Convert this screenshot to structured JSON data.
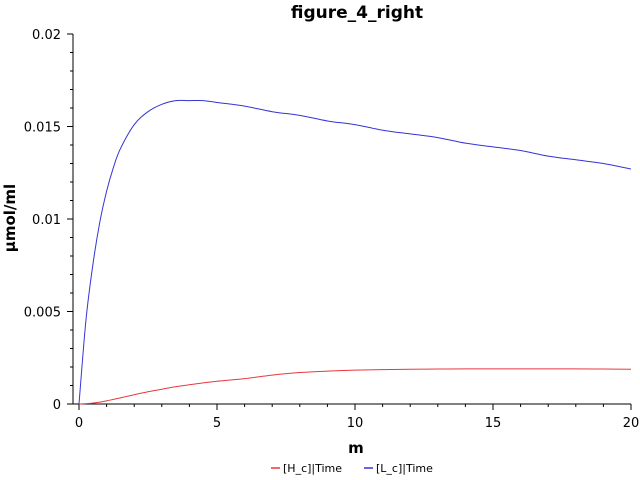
{
  "chart_data": {
    "type": "line",
    "title": "figure_4_right",
    "xlabel": "m",
    "ylabel": "µmol/ml",
    "xlim": [
      0,
      20
    ],
    "ylim": [
      0,
      0.02
    ],
    "x_ticks": [
      "0",
      "5",
      "10",
      "15",
      "20"
    ],
    "y_ticks": [
      "0",
      "0.005",
      "0.01",
      "0.015",
      "0.02"
    ],
    "grid": false,
    "legend_position": "bottom-center",
    "x": [
      0,
      0.25,
      0.5,
      0.75,
      1,
      1.25,
      1.5,
      2,
      2.5,
      3,
      3.5,
      4,
      4.5,
      5,
      6,
      7,
      8,
      9,
      10,
      11,
      12,
      13,
      14,
      15,
      16,
      17,
      18,
      19,
      20
    ],
    "series": [
      {
        "name": "[H_c]|Time",
        "color": "#e8383d",
        "values": [
          0,
          2e-05,
          5e-05,
          0.0001,
          0.00017,
          0.00025,
          0.00033,
          0.0005,
          0.00066,
          0.0008,
          0.00093,
          0.00104,
          0.00114,
          0.00123,
          0.00137,
          0.00156,
          0.0017,
          0.00178,
          0.00183,
          0.00186,
          0.00188,
          0.00189,
          0.0019,
          0.0019,
          0.0019,
          0.0019,
          0.0019,
          0.00189,
          0.00188
        ]
      },
      {
        "name": "[L_c]|Time",
        "color": "#3434d4",
        "values": [
          0,
          0.0045,
          0.0075,
          0.0098,
          0.0115,
          0.0128,
          0.0138,
          0.0151,
          0.0158,
          0.0162,
          0.0164,
          0.0164,
          0.0164,
          0.0163,
          0.0161,
          0.0158,
          0.0156,
          0.0153,
          0.0151,
          0.0148,
          0.0146,
          0.0144,
          0.0141,
          0.0139,
          0.0137,
          0.0134,
          0.0132,
          0.013,
          0.0127
        ]
      }
    ]
  }
}
